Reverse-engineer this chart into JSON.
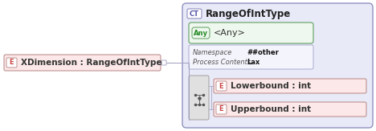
{
  "bg_color": "#ffffff",
  "main_element_label": "XDimension : RangeOfIntType",
  "main_element_tag": "E",
  "main_box_fill": "#fce8e8",
  "main_box_edge": "#c09090",
  "ct_box_fill": "#e8eaf8",
  "ct_box_edge": "#9090c0",
  "ct_label": "RangeOfIntType",
  "ct_tag": "CT",
  "any_box_fill": "#eef8ee",
  "any_box_edge": "#70a870",
  "any_label": "<Any>",
  "any_tag": "Any",
  "props_namespace_label": "Namespace",
  "props_namespace_val": "##other",
  "props_process_label": "Process Contents",
  "props_process_val": "Lax",
  "element1_label": "Lowerbound : int",
  "element2_label": "Upperbound : int",
  "element_tag": "E",
  "element_fill": "#fce8e8",
  "element_edge": "#c09090",
  "seq_fill": "#e0e0e0",
  "seq_edge": "#a0a0a0",
  "connector_color": "#a0a0c0",
  "line_color": "#b0b0c8"
}
